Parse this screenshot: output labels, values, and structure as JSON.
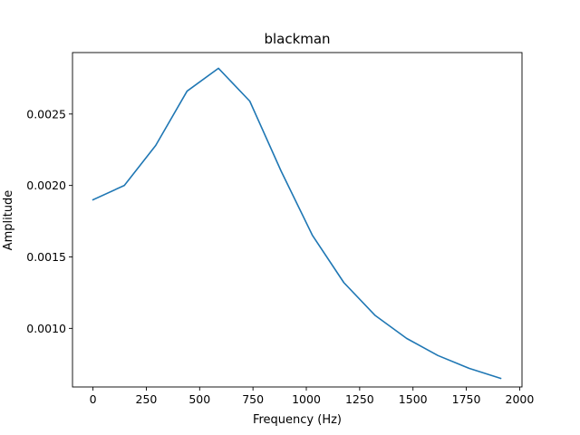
{
  "chart_data": {
    "type": "line",
    "title": "blackman",
    "xlabel": "Frequency (Hz)",
    "ylabel": "Amplitude",
    "xlim": [
      -96,
      2011
    ],
    "ylim": [
      0.00059,
      0.00293
    ],
    "x_ticks": [
      0,
      250,
      500,
      750,
      1000,
      1250,
      1500,
      1750,
      2000
    ],
    "x_tick_labels": [
      "0",
      "250",
      "500",
      "750",
      "1000",
      "1250",
      "1500",
      "1750",
      "2000"
    ],
    "y_ticks": [
      0.001,
      0.0015,
      0.002,
      0.0025
    ],
    "y_tick_labels": [
      "0.0010",
      "0.0015",
      "0.0020",
      "0.0025"
    ],
    "grid": false,
    "line_color": "#1f77b4",
    "series": [
      {
        "x": [
          0,
          147,
          294,
          441,
          588,
          735,
          882,
          1029,
          1176,
          1323,
          1470,
          1617,
          1764,
          1911
        ],
        "y": [
          0.0019,
          0.002,
          0.00228,
          0.00266,
          0.00282,
          0.00259,
          0.0021,
          0.00165,
          0.00132,
          0.00109,
          0.00093,
          0.00081,
          0.00072,
          0.00065
        ]
      }
    ]
  }
}
